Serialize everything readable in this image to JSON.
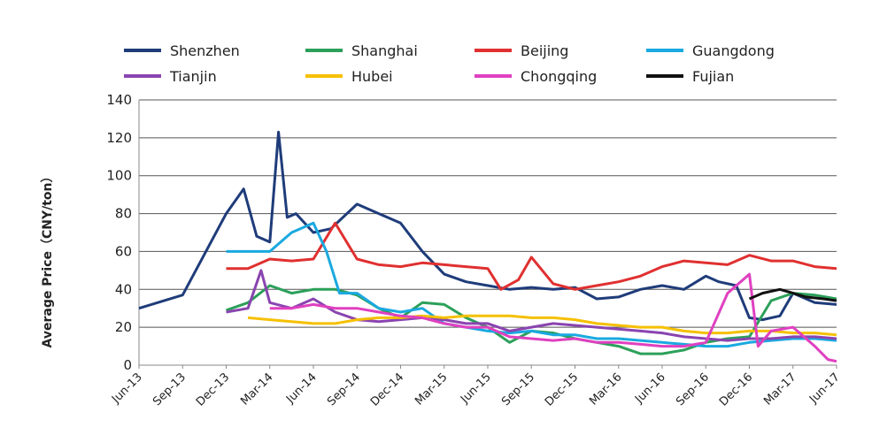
{
  "chart_data": {
    "type": "line",
    "ylabel": "Average Price（CNY/ton）",
    "xlabel": "",
    "ylim": [
      0,
      140
    ],
    "yticks": [
      0,
      20,
      40,
      60,
      80,
      100,
      120,
      140
    ],
    "grid": "horizontal",
    "legend_position": "top",
    "x_tick_labels": [
      "Jun-13",
      "Sep-13",
      "Dec-13",
      "Mar-14",
      "Jun-14",
      "Sep-14",
      "Dec-14",
      "Mar-15",
      "Jun-15",
      "Sep-15",
      "Dec-15",
      "Mar-16",
      "Jun-16",
      "Sep-16",
      "Dec-16",
      "Mar-17",
      "Jun-17"
    ],
    "series": [
      {
        "name": "Shenzhen",
        "color": "#1f3c7a",
        "x": [
          0,
          1,
          2,
          2.4,
          2.7,
          3,
          3.2,
          3.4,
          3.6,
          4,
          4.4,
          5,
          5.5,
          6,
          6.5,
          7,
          7.5,
          8,
          8.5,
          9,
          9.5,
          10,
          10.5,
          11,
          11.5,
          12,
          12.5,
          13,
          13.3,
          13.7,
          14,
          14.3,
          14.7,
          15,
          15.5,
          16
        ],
        "values": [
          30,
          37,
          80,
          93,
          68,
          65,
          123,
          78,
          80,
          70,
          72,
          85,
          80,
          75,
          60,
          48,
          44,
          42,
          40,
          41,
          40,
          41,
          35,
          36,
          40,
          42,
          40,
          47,
          44,
          42,
          25,
          24,
          26,
          38,
          33,
          32
        ]
      },
      {
        "name": "Shanghai",
        "color": "#2ca05a",
        "x": [
          2,
          2.5,
          3,
          3.5,
          4,
          4.5,
          5,
          5.5,
          6,
          6.5,
          7,
          7.5,
          8,
          8.5,
          9,
          9.5,
          10,
          10.5,
          11,
          11.5,
          12,
          12.5,
          13,
          13.5,
          14,
          14.5,
          15,
          15.5,
          16
        ],
        "values": [
          29,
          33,
          42,
          38,
          40,
          40,
          37,
          30,
          25,
          33,
          32,
          25,
          20,
          12,
          18,
          17,
          14,
          12,
          10,
          6,
          6,
          8,
          12,
          14,
          15,
          34,
          38,
          37,
          35
        ]
      },
      {
        "name": "Beijing",
        "color": "#e03030",
        "x": [
          2,
          2.5,
          3,
          3.5,
          4,
          4.5,
          5,
          5.5,
          6,
          6.5,
          7,
          7.5,
          8,
          8.3,
          8.7,
          9,
          9.5,
          10,
          10.5,
          11,
          11.5,
          12,
          12.5,
          13,
          13.5,
          14,
          14.5,
          15,
          15.5,
          16
        ],
        "values": [
          51,
          51,
          56,
          55,
          56,
          75,
          56,
          53,
          52,
          54,
          53,
          52,
          51,
          40,
          45,
          57,
          43,
          40,
          42,
          44,
          47,
          52,
          55,
          54,
          53,
          58,
          55,
          55,
          52,
          51
        ]
      },
      {
        "name": "Guangdong",
        "color": "#1aa9e0",
        "x": [
          2,
          2.5,
          3,
          3.5,
          4,
          4.3,
          4.6,
          5,
          5.5,
          6,
          6.5,
          7,
          7.5,
          8,
          8.5,
          9,
          9.5,
          10,
          10.5,
          11,
          11.5,
          12,
          12.5,
          13,
          13.5,
          14,
          14.5,
          15,
          15.5,
          16
        ],
        "values": [
          60,
          60,
          60,
          70,
          75,
          60,
          38,
          38,
          30,
          28,
          30,
          22,
          20,
          18,
          17,
          18,
          16,
          16,
          14,
          14,
          13,
          12,
          11,
          10,
          10,
          12,
          13,
          14,
          14,
          13
        ]
      },
      {
        "name": "Tianjin",
        "color": "#8a44b0",
        "x": [
          2,
          2.5,
          2.8,
          3,
          3.5,
          4,
          4.5,
          5,
          5.5,
          6,
          6.5,
          7,
          7.5,
          8,
          8.5,
          9,
          9.5,
          10,
          10.5,
          11,
          11.5,
          12,
          12.5,
          13,
          13.5,
          14,
          14.5,
          15,
          15.5,
          16
        ],
        "values": [
          28,
          30,
          50,
          33,
          30,
          35,
          28,
          24,
          23,
          24,
          25,
          24,
          22,
          22,
          18,
          20,
          22,
          21,
          20,
          19,
          18,
          17,
          15,
          14,
          13,
          14,
          14,
          15,
          15,
          14
        ]
      },
      {
        "name": "Hubei",
        "color": "#f5c000",
        "x": [
          2.5,
          3,
          3.5,
          4,
          4.5,
          5,
          5.5,
          6,
          6.5,
          7,
          7.5,
          8,
          8.5,
          9,
          9.5,
          10,
          10.5,
          11,
          11.5,
          12,
          12.5,
          13,
          13.5,
          14,
          14.5,
          15,
          15.5,
          16
        ],
        "values": [
          25,
          24,
          23,
          22,
          22,
          24,
          25,
          25,
          26,
          25,
          26,
          26,
          26,
          25,
          25,
          24,
          22,
          21,
          20,
          20,
          18,
          17,
          17,
          18,
          18,
          17,
          17,
          16
        ]
      },
      {
        "name": "Chongqing",
        "color": "#e040c0",
        "x": [
          3,
          3.5,
          4,
          4.5,
          5,
          5.5,
          6,
          6.5,
          7,
          7.5,
          8,
          8.5,
          9,
          9.5,
          10,
          10.5,
          11,
          11.5,
          12,
          12.5,
          13,
          13.5,
          14,
          14.2,
          14.5,
          15,
          15.5,
          15.8,
          16
        ],
        "values": [
          30,
          30,
          32,
          30,
          30,
          28,
          26,
          25,
          22,
          20,
          20,
          15,
          14,
          13,
          14,
          12,
          12,
          11,
          10,
          10,
          12,
          38,
          48,
          10,
          18,
          20,
          10,
          3,
          2
        ]
      },
      {
        "name": "Fujian",
        "color": "#111111",
        "x": [
          14,
          14.3,
          14.7,
          15,
          15.3,
          15.7,
          16
        ],
        "values": [
          35,
          38,
          40,
          38,
          36,
          35,
          34
        ]
      }
    ]
  }
}
